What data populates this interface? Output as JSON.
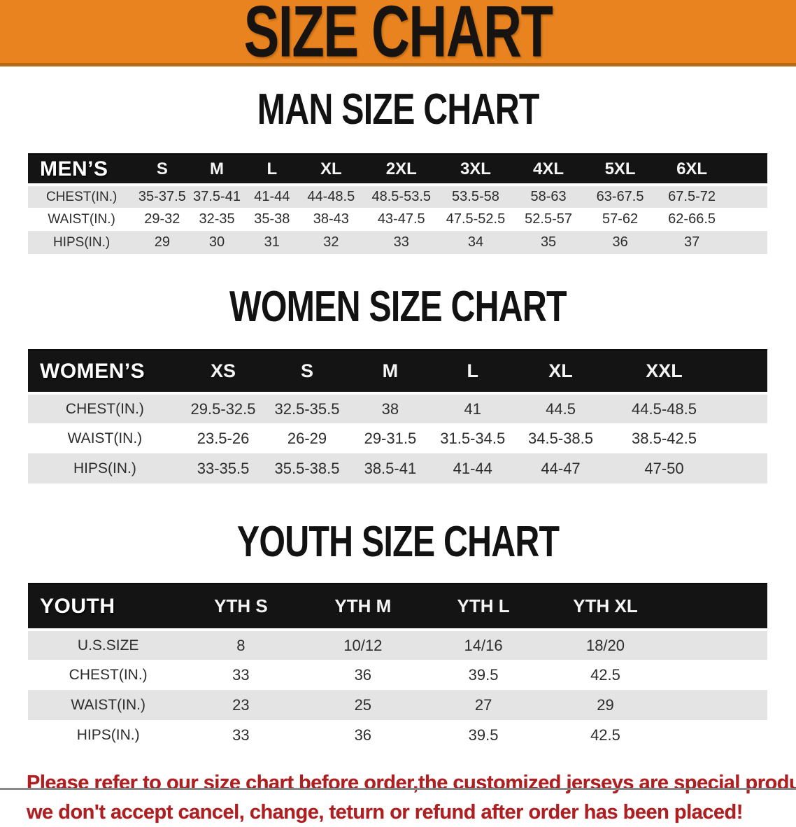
{
  "banner": {
    "title": "SIZE CHART"
  },
  "sections": [
    {
      "title": "MAN SIZE CHART",
      "header_label": "MEN’S",
      "columns": [
        "S",
        "M",
        "L",
        "XL",
        "2XL",
        "3XL",
        "4XL",
        "5XL",
        "6XL"
      ],
      "rows": [
        {
          "label": "CHEST(IN.)",
          "values": [
            "35-37.5",
            "37.5-41",
            "41-44",
            "44-48.5",
            "48.5-53.5",
            "53.5-58",
            "58-63",
            "63-67.5",
            "67.5-72"
          ]
        },
        {
          "label": "WAIST(IN.)",
          "values": [
            "29-32",
            "32-35",
            "35-38",
            "38-43",
            "43-47.5",
            "47.5-52.5",
            "52.5-57",
            "57-62",
            "62-66.5"
          ]
        },
        {
          "label": "HIPS(IN.)",
          "values": [
            "29",
            "30",
            "31",
            "32",
            "33",
            "34",
            "35",
            "36",
            "37"
          ]
        }
      ]
    },
    {
      "title": "WOMEN SIZE CHART",
      "header_label": "WOMEN’S",
      "columns": [
        "XS",
        "S",
        "M",
        "L",
        "XL",
        "XXL"
      ],
      "rows": [
        {
          "label": "CHEST(IN.)",
          "values": [
            "29.5-32.5",
            "32.5-35.5",
            "38",
            "41",
            "44.5",
            "44.5-48.5"
          ]
        },
        {
          "label": "WAIST(IN.)",
          "values": [
            "23.5-26",
            "26-29",
            "29-31.5",
            "31.5-34.5",
            "34.5-38.5",
            "38.5-42.5"
          ]
        },
        {
          "label": "HIPS(IN.)",
          "values": [
            "33-35.5",
            "35.5-38.5",
            "38.5-41",
            "41-44",
            "44-47",
            "47-50"
          ]
        }
      ]
    },
    {
      "title": "YOUTH SIZE CHART",
      "header_label": "YOUTH",
      "columns": [
        "YTH S",
        "YTH M",
        "YTH L",
        "YTH XL"
      ],
      "rows": [
        {
          "label": "U.S.SIZE",
          "values": [
            "8",
            "10/12",
            "14/16",
            "18/20"
          ]
        },
        {
          "label": "CHEST(IN.)",
          "values": [
            "33",
            "36",
            "39.5",
            "42.5"
          ]
        },
        {
          "label": "WAIST(IN.)",
          "values": [
            "23",
            "25",
            "27",
            "29"
          ]
        },
        {
          "label": "HIPS(IN.)",
          "values": [
            "33",
            "36",
            "39.5",
            "42.5"
          ]
        }
      ]
    }
  ],
  "disclaimer": {
    "line1": "Please refer to our size chart before order,the customized jerseys are special products,",
    "line2": "we don't accept cancel, change, teturn or refund after order has been placed!"
  },
  "colors": {
    "banner_bg": "#E8831F",
    "banner_border": "#BA6A14",
    "header_bar": "#141414",
    "row_alt": "#E4E4E4",
    "body_text": "#2D2D2D",
    "disclaimer": "#AE1F22"
  }
}
